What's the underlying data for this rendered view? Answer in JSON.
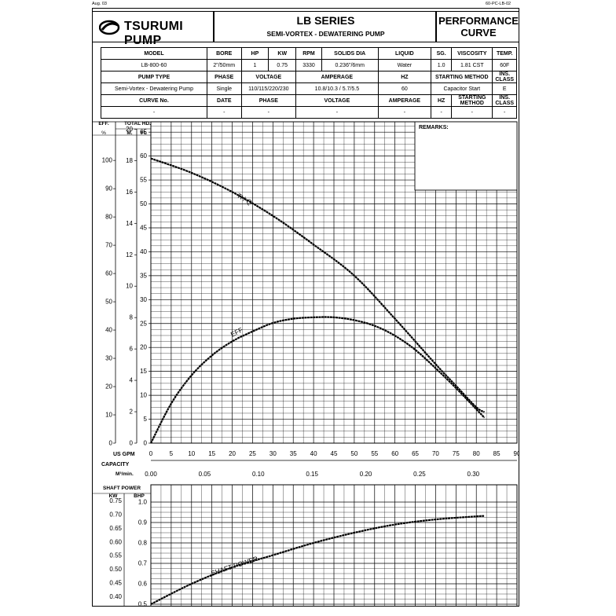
{
  "corner_left": "Aug. 03",
  "corner_right": "60-PC-LB-02",
  "brand": "TSURUMI PUMP",
  "series_title": "LB SERIES",
  "series_subtitle": "SEMI-VORTEX - DEWATERING PUMP",
  "doc_title_line1": "PERFORMANCE",
  "doc_title_line2": "CURVE",
  "spec_table": {
    "row1_headers": [
      "MODEL",
      "BORE",
      "HP",
      "KW",
      "RPM",
      "SOLIDS DIA",
      "LIQUID",
      "SG.",
      "VISCOSITY",
      "TEMP."
    ],
    "row1_values": [
      "LB-800-60",
      "2\"/50mm",
      "1",
      "0.75",
      "3330",
      "0.236\"/6mm",
      "Water",
      "1.0",
      "1.81 CST",
      "60F"
    ],
    "row2_headers": [
      "PUMP TYPE",
      "PHASE",
      "VOLTAGE",
      "AMPERAGE",
      "HZ",
      "STARTING METHOD",
      "INS. CLASS"
    ],
    "row2_values": [
      "Semi-Vortex - Dewatering Pump",
      "Single",
      "110/115/220/230",
      "10.8/10.3 / 5.7/5.5",
      "60",
      "Capacitor Start",
      "E"
    ],
    "row3_headers": [
      "CURVE No.",
      "DATE",
      "PHASE",
      "VOLTAGE",
      "AMPERAGE",
      "HZ",
      "STARTING METHOD",
      "INS. CLASS"
    ],
    "row3_values": [
      "-",
      "-",
      "-",
      "-",
      "-",
      "-",
      "-",
      "-"
    ]
  },
  "remarks_label": "REMARKS:",
  "axis_labels": {
    "eff_header": "EFF.",
    "eff_unit": "%",
    "total_hd_header": "TOTAL HD.",
    "m_unit": "M.",
    "ft_unit": "Ft.",
    "us_gpm": "US GPM",
    "capacity": "CAPACITY",
    "m3min": "M³/min.",
    "shaft_power": "SHAFT POWER",
    "kw": "KW",
    "bhp": "BHP"
  },
  "chart_data": [
    {
      "type": "line",
      "x_label": "US GPM",
      "xlim": [
        0,
        90
      ],
      "x_ticks": [
        0,
        5,
        10,
        15,
        20,
        25,
        30,
        35,
        40,
        45,
        50,
        55,
        60,
        65,
        70,
        75,
        80,
        85,
        90
      ],
      "capacity_ticks": [
        "0.00",
        "0.05",
        "0.10",
        "0.15",
        "0.20",
        "0.25",
        "0.30"
      ],
      "ft_ticks": [
        0,
        5,
        10,
        15,
        20,
        25,
        30,
        35,
        40,
        45,
        50,
        55,
        60,
        65
      ],
      "m_ticks": [
        0,
        2,
        4,
        6,
        8,
        10,
        12,
        14,
        16,
        18,
        20
      ],
      "eff_ticks": [
        0,
        10,
        20,
        30,
        40,
        50,
        60,
        70,
        80,
        90,
        100
      ],
      "ylim_ft": [
        0,
        67
      ],
      "series": [
        {
          "name": "TH-Q",
          "axis": "ft",
          "x": [
            0,
            10,
            20,
            30,
            40,
            50,
            60,
            70,
            75,
            80,
            82
          ],
          "y": [
            59.5,
            56.5,
            52.5,
            47.5,
            41.5,
            35,
            26,
            16.5,
            12,
            7.5,
            6.5
          ]
        },
        {
          "name": "EFF",
          "axis": "eff",
          "x": [
            0,
            5,
            10,
            15,
            20,
            25,
            30,
            35,
            40,
            45,
            50,
            55,
            60,
            65,
            70,
            75,
            80,
            82
          ],
          "y": [
            0,
            14,
            24,
            31,
            36,
            39.5,
            42.5,
            44,
            44.5,
            44.5,
            43.5,
            41.5,
            38,
            33,
            26.5,
            19.5,
            12,
            9
          ]
        }
      ]
    },
    {
      "type": "line",
      "x_label": "US GPM",
      "xlim": [
        0,
        90
      ],
      "kw_ticks": [
        "0.40",
        "0.45",
        "0.50",
        "0.55",
        "0.60",
        "0.65",
        "0.70",
        "0.75"
      ],
      "bhp_ticks": [
        "0.5",
        "0.6",
        "0.7",
        "0.8",
        "0.9",
        "1.0"
      ],
      "ylim_bhp": [
        0.5,
        1.0
      ],
      "series": [
        {
          "name": "SHAFT POWER",
          "axis": "bhp",
          "x": [
            0,
            10,
            20,
            30,
            40,
            50,
            60,
            70,
            80,
            82
          ],
          "y": [
            0.5,
            0.6,
            0.68,
            0.74,
            0.8,
            0.85,
            0.89,
            0.915,
            0.93,
            0.932
          ]
        }
      ]
    }
  ]
}
